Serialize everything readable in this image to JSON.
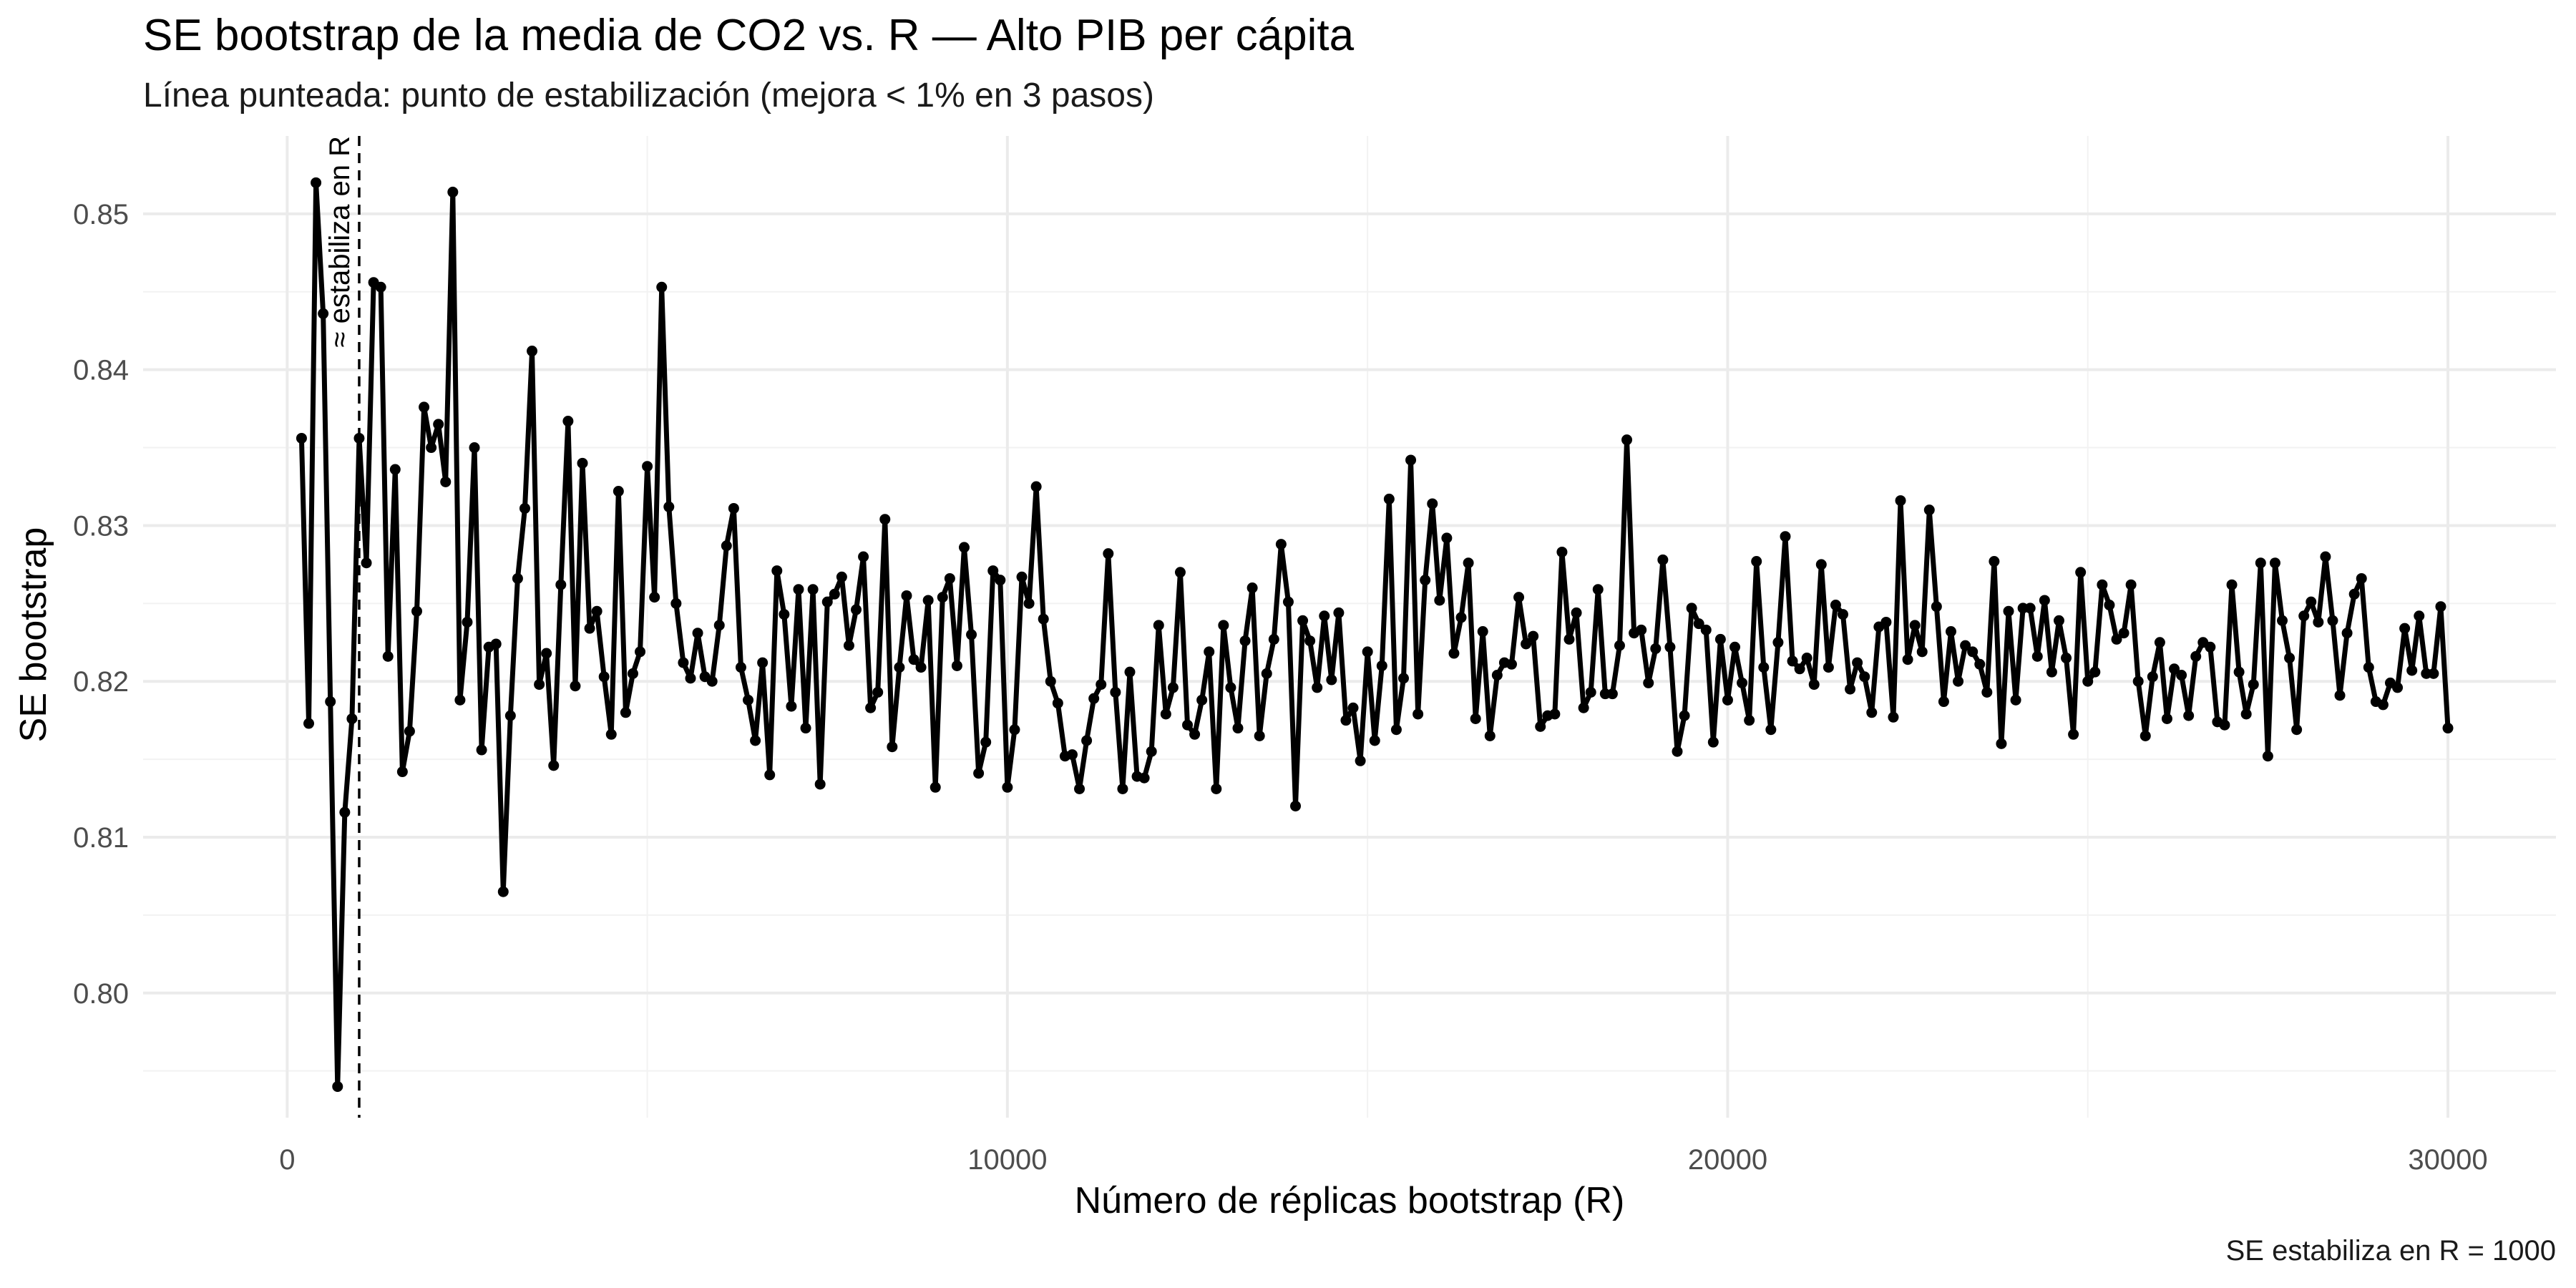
{
  "chart_data": {
    "type": "line",
    "title": "SE bootstrap de la media de CO2 vs. R — Alto PIB per cápita",
    "subtitle": "Línea punteada: punto de estabilización (mejora < 1% en 3 pasos)",
    "caption": "SE estabiliza en R = 1000",
    "xlabel": "Número de réplicas bootstrap (R)",
    "ylabel": "SE bootstrap",
    "xlim": [
      -2000,
      31500
    ],
    "ylim": [
      0.792,
      0.855
    ],
    "x_ticks": [
      0,
      10000,
      20000,
      30000
    ],
    "x_tick_labels": [
      "0",
      "10000",
      "20000",
      "30000"
    ],
    "y_ticks": [
      0.8,
      0.81,
      0.82,
      0.83,
      0.84,
      0.85
    ],
    "y_tick_labels": [
      "0.80",
      "0.81",
      "0.82",
      "0.83",
      "0.84",
      "0.85"
    ],
    "grid": true,
    "line_color": "#000000",
    "vline": {
      "x": 1000,
      "label": "≈ estabiliza en R",
      "style": "dashed"
    },
    "x_start": 200,
    "x_step": 100,
    "y": [
      0.8356,
      0.8173,
      0.852,
      0.8436,
      0.8187,
      0.794,
      0.8116,
      0.8176,
      0.8356,
      0.8276,
      0.8456,
      0.8453,
      0.8216,
      0.8336,
      0.8142,
      0.8168,
      0.8245,
      0.8376,
      0.835,
      0.8365,
      0.8328,
      0.8514,
      0.8188,
      0.8238,
      0.835,
      0.8156,
      0.8222,
      0.8224,
      0.8065,
      0.8178,
      0.8266,
      0.8311,
      0.8412,
      0.8198,
      0.8218,
      0.8146,
      0.8262,
      0.8367,
      0.8197,
      0.834,
      0.8234,
      0.8245,
      0.8203,
      0.8166,
      0.8322,
      0.818,
      0.8205,
      0.8219,
      0.8338,
      0.8254,
      0.8453,
      0.8312,
      0.825,
      0.8212,
      0.8202,
      0.8231,
      0.8203,
      0.82,
      0.8236,
      0.8287,
      0.8311,
      0.8209,
      0.8188,
      0.8162,
      0.8212,
      0.814,
      0.8271,
      0.8243,
      0.8184,
      0.8259,
      0.817,
      0.8259,
      0.8134,
      0.8251,
      0.8256,
      0.8267,
      0.8223,
      0.8246,
      0.828,
      0.8183,
      0.8193,
      0.8304,
      0.8158,
      0.8209,
      0.8255,
      0.8214,
      0.8209,
      0.8252,
      0.8132,
      0.8254,
      0.8266,
      0.821,
      0.8286,
      0.823,
      0.8141,
      0.8161,
      0.8271,
      0.8265,
      0.8132,
      0.8169,
      0.8267,
      0.825,
      0.8325,
      0.824,
      0.82,
      0.8186,
      0.8152,
      0.8153,
      0.8131,
      0.8162,
      0.8189,
      0.8198,
      0.8282,
      0.8193,
      0.8131,
      0.8206,
      0.8139,
      0.8138,
      0.8155,
      0.8236,
      0.8179,
      0.8196,
      0.827,
      0.8172,
      0.8166,
      0.8188,
      0.8219,
      0.8131,
      0.8236,
      0.8196,
      0.817,
      0.8226,
      0.826,
      0.8165,
      0.8205,
      0.8227,
      0.8288,
      0.8251,
      0.812,
      0.8239,
      0.8226,
      0.8196,
      0.8242,
      0.8201,
      0.8244,
      0.8175,
      0.8183,
      0.8149,
      0.8219,
      0.8162,
      0.821,
      0.8317,
      0.8169,
      0.8202,
      0.8342,
      0.8179,
      0.8265,
      0.8314,
      0.8252,
      0.8292,
      0.8218,
      0.8241,
      0.8276,
      0.8176,
      0.8232,
      0.8165,
      0.8204,
      0.8212,
      0.8211,
      0.8254,
      0.8224,
      0.8229,
      0.8171,
      0.8178,
      0.8179,
      0.8283,
      0.8227,
      0.8244,
      0.8183,
      0.8193,
      0.8259,
      0.8192,
      0.8192,
      0.8223,
      0.8355,
      0.8231,
      0.8233,
      0.8199,
      0.8221,
      0.8278,
      0.8222,
      0.8155,
      0.8178,
      0.8247,
      0.8237,
      0.8233,
      0.8161,
      0.8227,
      0.8188,
      0.8222,
      0.8199,
      0.8175,
      0.8277,
      0.8209,
      0.8169,
      0.8225,
      0.8293,
      0.8213,
      0.8208,
      0.8215,
      0.8198,
      0.8275,
      0.8209,
      0.8249,
      0.8243,
      0.8195,
      0.8212,
      0.8203,
      0.818,
      0.8235,
      0.8238,
      0.8177,
      0.8316,
      0.8214,
      0.8236,
      0.8219,
      0.831,
      0.8248,
      0.8187,
      0.8232,
      0.82,
      0.8223,
      0.8219,
      0.8211,
      0.8193,
      0.8277,
      0.816,
      0.8245,
      0.8188,
      0.8247,
      0.8247,
      0.8216,
      0.8252,
      0.8206,
      0.8239,
      0.8215,
      0.8166,
      0.827,
      0.82,
      0.8206,
      0.8262,
      0.8249,
      0.8227,
      0.8231,
      0.8262,
      0.82,
      0.8165,
      0.8203,
      0.8225,
      0.8176,
      0.8208,
      0.8204,
      0.8178,
      0.8216,
      0.8225,
      0.8222,
      0.8174,
      0.8172,
      0.8262,
      0.8206,
      0.8179,
      0.8198,
      0.8276,
      0.8152,
      0.8276,
      0.8239,
      0.8215,
      0.8169,
      0.8242,
      0.8251,
      0.8238,
      0.828,
      0.8239,
      0.8191,
      0.8231,
      0.8256,
      0.8266,
      0.8209,
      0.8187,
      0.8185,
      0.8199,
      0.8196,
      0.8234,
      0.8207,
      0.8242,
      0.8205,
      0.8205,
      0.8248,
      0.817
    ]
  }
}
